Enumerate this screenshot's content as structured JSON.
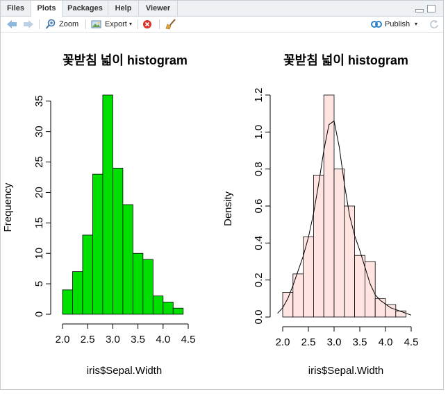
{
  "tabs": [
    {
      "label": "Files",
      "active": false
    },
    {
      "label": "Plots",
      "active": true
    },
    {
      "label": "Packages",
      "active": false
    },
    {
      "label": "Help",
      "active": false
    },
    {
      "label": "Viewer",
      "active": false
    }
  ],
  "toolbar": {
    "zoom_label": "Zoom",
    "export_label": "Export",
    "publish_label": "Publish"
  },
  "colors": {
    "hist1_fill": "#00e000",
    "hist2_fill": "#ffe4e1",
    "publish_icon": "#2f83c6",
    "clear_icon": "#d9302a"
  },
  "chart_data": [
    {
      "type": "bar",
      "title": "꽃받침 넓이 histogram",
      "xlabel": "iris$Sepal.Width",
      "ylabel": "Frequency",
      "breaks": [
        2.0,
        2.2,
        2.4,
        2.6,
        2.8,
        3.0,
        3.2,
        3.4,
        3.6,
        3.8,
        4.0,
        4.2,
        4.4
      ],
      "values": [
        4,
        7,
        13,
        23,
        36,
        24,
        18,
        10,
        9,
        3,
        2,
        1
      ],
      "xticks": [
        "2.0",
        "2.5",
        "3.0",
        "3.5",
        "4.0",
        "4.5"
      ],
      "yticks": [
        "0",
        "5",
        "10",
        "15",
        "20",
        "25",
        "30",
        "35"
      ],
      "xlim": [
        2.0,
        4.5
      ],
      "ylim": [
        0,
        36
      ]
    },
    {
      "type": "bar",
      "title": "꽃받침 넓이 histogram",
      "xlabel": "iris$Sepal.Width",
      "ylabel": "Density",
      "breaks": [
        2.0,
        2.2,
        2.4,
        2.6,
        2.8,
        3.0,
        3.2,
        3.4,
        3.6,
        3.8,
        4.0,
        4.2,
        4.4
      ],
      "values": [
        0.133,
        0.233,
        0.433,
        0.767,
        1.2,
        0.8,
        0.6,
        0.333,
        0.3,
        0.1,
        0.067,
        0.033
      ],
      "xticks": [
        "2.0",
        "2.5",
        "3.0",
        "3.5",
        "4.0",
        "4.5"
      ],
      "yticks": [
        "0.0",
        "0.2",
        "0.4",
        "0.6",
        "0.8",
        "1.0",
        "1.2"
      ],
      "xlim": [
        2.0,
        4.5
      ],
      "ylim": [
        0,
        1.2
      ],
      "density_curve": {
        "x": [
          1.9,
          2.0,
          2.1,
          2.2,
          2.3,
          2.4,
          2.5,
          2.6,
          2.7,
          2.8,
          2.9,
          3.0,
          3.1,
          3.2,
          3.3,
          3.4,
          3.5,
          3.6,
          3.7,
          3.8,
          3.9,
          4.0,
          4.1,
          4.2,
          4.3,
          4.4,
          4.5
        ],
        "y": [
          0.02,
          0.05,
          0.1,
          0.17,
          0.25,
          0.33,
          0.43,
          0.56,
          0.72,
          0.9,
          1.04,
          1.06,
          0.92,
          0.72,
          0.55,
          0.44,
          0.36,
          0.27,
          0.18,
          0.12,
          0.09,
          0.07,
          0.05,
          0.04,
          0.03,
          0.02,
          0.01
        ]
      }
    }
  ]
}
